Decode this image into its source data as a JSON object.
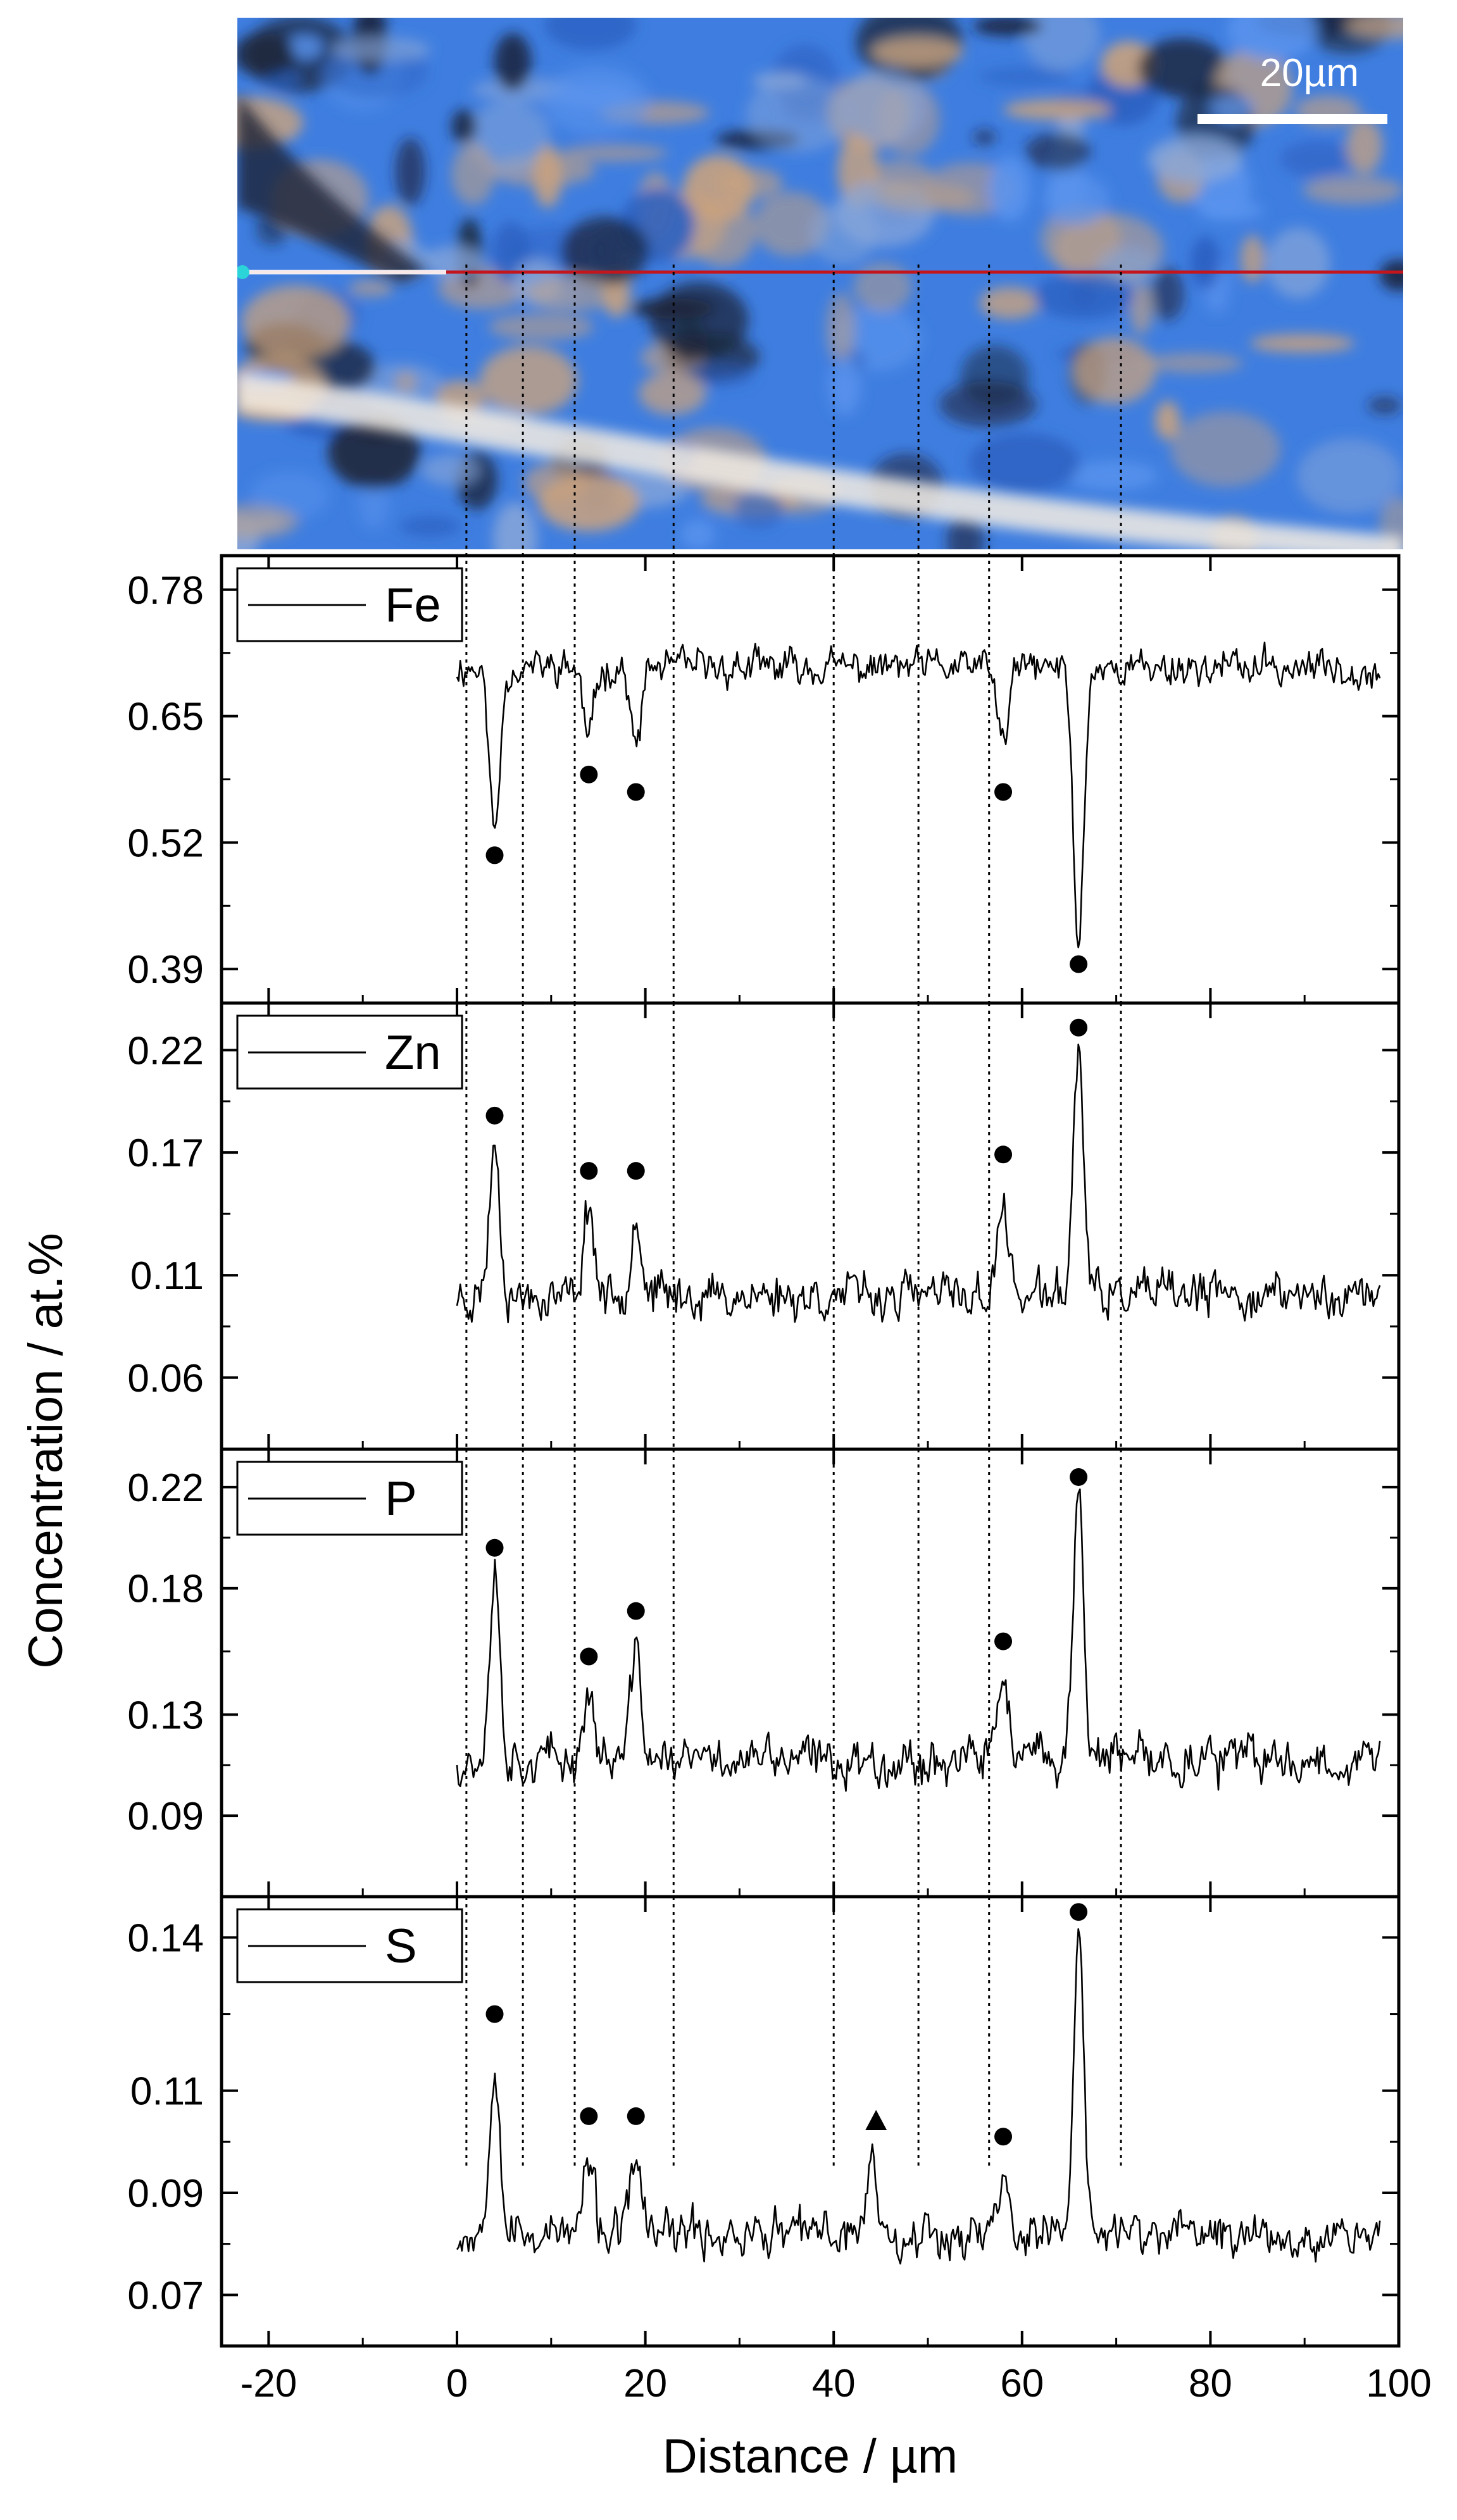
{
  "micrograph": {
    "scale_bar_label": "20µm",
    "colors": {
      "blue": "#3f7ee0",
      "tan": "#c9a27e",
      "dark": "#1b2235",
      "highlight": "#f4ede2",
      "line_scan": "#c4151c",
      "marker": "#2ad4d8"
    }
  },
  "chart_data": [
    {
      "type": "line",
      "legend": "Fe",
      "ylabel": "Concentration / at.%",
      "xlim": [
        -25,
        100
      ],
      "ylim": [
        0.355,
        0.815
      ],
      "yticks": [
        "0.78",
        "0.65",
        "0.52",
        "0.39"
      ],
      "ytick_values": [
        0.78,
        0.65,
        0.52,
        0.39
      ],
      "baseline": 0.7,
      "noise": 0.02,
      "seed": 11,
      "peaks": [
        {
          "x": 4,
          "y": 0.53
        },
        {
          "x": 14,
          "y": 0.625
        },
        {
          "x": 19,
          "y": 0.615
        },
        {
          "x": 58,
          "y": 0.62
        },
        {
          "x": 66,
          "y": 0.415
        }
      ],
      "markers": [
        {
          "x": 4,
          "y": 0.507,
          "shape": "circle"
        },
        {
          "x": 14,
          "y": 0.59,
          "shape": "circle"
        },
        {
          "x": 19,
          "y": 0.572,
          "shape": "circle"
        },
        {
          "x": 58,
          "y": 0.572,
          "shape": "circle"
        },
        {
          "x": 66,
          "y": 0.395,
          "shape": "circle"
        }
      ]
    },
    {
      "type": "line",
      "legend": "Zn",
      "xlim": [
        -25,
        100
      ],
      "ylim": [
        0.025,
        0.243
      ],
      "yticks": [
        "0.22",
        "0.17",
        "0.11",
        "0.06"
      ],
      "ytick_values": [
        0.22,
        0.17,
        0.11,
        0.06
      ],
      "baseline": 0.1,
      "noise": 0.012,
      "seed": 23,
      "peaks": [
        {
          "x": 4,
          "y": 0.175
        },
        {
          "x": 14,
          "y": 0.145
        },
        {
          "x": 19,
          "y": 0.14
        },
        {
          "x": 58,
          "y": 0.145
        },
        {
          "x": 66,
          "y": 0.22
        }
      ],
      "markers": [
        {
          "x": 4,
          "y": 0.188,
          "shape": "circle"
        },
        {
          "x": 14,
          "y": 0.161,
          "shape": "circle"
        },
        {
          "x": 19,
          "y": 0.161,
          "shape": "circle"
        },
        {
          "x": 58,
          "y": 0.169,
          "shape": "circle"
        },
        {
          "x": 66,
          "y": 0.231,
          "shape": "circle"
        }
      ]
    },
    {
      "type": "line",
      "legend": "P",
      "xlim": [
        -25,
        100
      ],
      "ylim": [
        0.058,
        0.235
      ],
      "yticks": [
        "0.22",
        "0.18",
        "0.13",
        "0.09"
      ],
      "ytick_values": [
        0.22,
        0.18,
        0.13,
        0.09
      ],
      "baseline": 0.112,
      "noise": 0.01,
      "seed": 37,
      "peaks": [
        {
          "x": 4,
          "y": 0.187
        },
        {
          "x": 14,
          "y": 0.14
        },
        {
          "x": 19,
          "y": 0.155
        },
        {
          "x": 58,
          "y": 0.148
        },
        {
          "x": 66,
          "y": 0.22
        }
      ],
      "markers": [
        {
          "x": 4,
          "y": 0.196,
          "shape": "circle"
        },
        {
          "x": 14,
          "y": 0.153,
          "shape": "circle"
        },
        {
          "x": 19,
          "y": 0.171,
          "shape": "circle"
        },
        {
          "x": 58,
          "y": 0.159,
          "shape": "circle"
        },
        {
          "x": 66,
          "y": 0.224,
          "shape": "circle"
        }
      ]
    },
    {
      "type": "line",
      "legend": "S",
      "xlabel": "Distance / µm",
      "xlim": [
        -25,
        100
      ],
      "ylim": [
        0.06,
        0.148
      ],
      "xticks": [
        "-20",
        "0",
        "20",
        "40",
        "60",
        "80",
        "100"
      ],
      "xtick_values": [
        -20,
        0,
        20,
        40,
        60,
        80,
        100
      ],
      "yticks": [
        "0.14",
        "0.11",
        "0.09",
        "0.07"
      ],
      "ytick_values": [
        0.14,
        0.11,
        0.09,
        0.07
      ],
      "baseline": 0.082,
      "noise": 0.005,
      "seed": 53,
      "peaks": [
        {
          "x": 4,
          "y": 0.117
        },
        {
          "x": 14,
          "y": 0.096
        },
        {
          "x": 19,
          "y": 0.097
        },
        {
          "x": 44,
          "y": 0.097
        },
        {
          "x": 58,
          "y": 0.094
        },
        {
          "x": 66,
          "y": 0.139
        }
      ],
      "markers": [
        {
          "x": 4,
          "y": 0.125,
          "shape": "circle"
        },
        {
          "x": 14,
          "y": 0.105,
          "shape": "circle"
        },
        {
          "x": 19,
          "y": 0.105,
          "shape": "circle"
        },
        {
          "x": 44.5,
          "y": 0.104,
          "shape": "triangle"
        },
        {
          "x": 58,
          "y": 0.101,
          "shape": "circle"
        },
        {
          "x": 66,
          "y": 0.145,
          "shape": "circle"
        }
      ]
    }
  ],
  "scan": {
    "x_start": 0,
    "x_end": 98
  },
  "guide_lines": [
    1,
    7,
    12.5,
    23,
    40,
    49,
    56.5,
    70.5
  ]
}
